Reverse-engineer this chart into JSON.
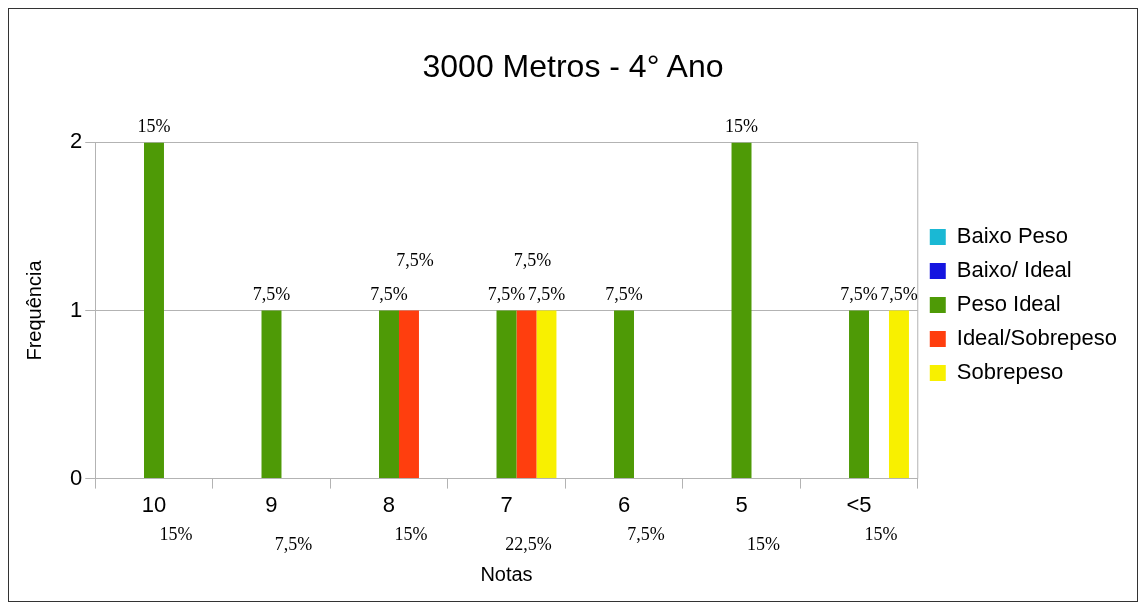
{
  "chart_data": {
    "type": "bar",
    "title": "3000 Metros - 4° Ano",
    "xlabel": "Notas",
    "ylabel": "Frequência",
    "categories": [
      "10",
      "9",
      "8",
      "7",
      "6",
      "5",
      "<5"
    ],
    "series": [
      {
        "name": "Baixo Peso",
        "color": "#1ab8d4",
        "values": [
          null,
          null,
          null,
          null,
          null,
          null,
          null
        ]
      },
      {
        "name": "Baixo/ Ideal",
        "color": "#1515e0",
        "values": [
          null,
          null,
          null,
          null,
          null,
          null,
          null
        ]
      },
      {
        "name": "Peso Ideal",
        "color": "#4e9a06",
        "values": [
          2,
          1,
          1,
          1,
          1,
          2,
          1
        ]
      },
      {
        "name": "Ideal/Sobrepeso",
        "color": "#ff3e0e",
        "values": [
          null,
          null,
          1,
          1,
          null,
          null,
          null
        ]
      },
      {
        "name": "Sobrepeso",
        "color": "#f8f000",
        "values": [
          null,
          null,
          null,
          1,
          null,
          null,
          1
        ]
      }
    ],
    "ylim": [
      0,
      2
    ],
    "yticks": [
      0,
      1,
      2
    ],
    "grid": "y",
    "legend": "right",
    "annotations": [
      {
        "text": "15%",
        "x": "10",
        "y": 2
      },
      {
        "text": "7,5%",
        "x": "9",
        "y": 1
      },
      {
        "text": "7,5%",
        "x": "8",
        "y": 1
      },
      {
        "text": "7,5%",
        "x": "8",
        "y": 1
      },
      {
        "text": "7,5%",
        "x": "7",
        "y": 1
      },
      {
        "text": "7,5%",
        "x": "7",
        "y": 1
      },
      {
        "text": "7,5%",
        "x": "7",
        "y": 1
      },
      {
        "text": "7,5%",
        "x": "6",
        "y": 1
      },
      {
        "text": "15%",
        "x": "5",
        "y": 2
      },
      {
        "text": "7,5%",
        "x": "<5",
        "y": 1
      },
      {
        "text": "7,5%",
        "x": "<5",
        "y": 1
      },
      "15%",
      "7,5%",
      "15%",
      "22,5%",
      "7,5%",
      "15%",
      "15%"
    ]
  }
}
